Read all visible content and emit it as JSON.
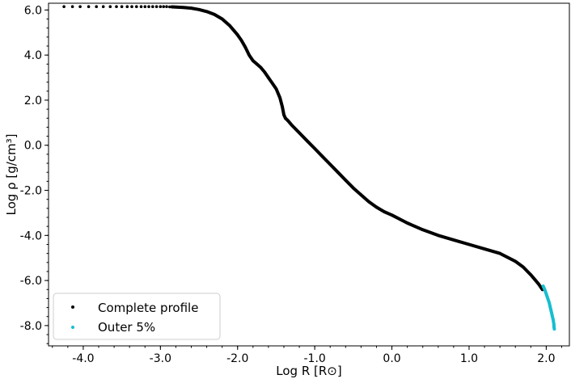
{
  "chart_data": {
    "type": "scatter",
    "xlabel": "Log R [R⊙]",
    "ylabel": "Log ρ [g/cm³]",
    "xlim": [
      -4.45,
      2.3
    ],
    "ylim": [
      -8.9,
      6.3
    ],
    "xticks": [
      -4.0,
      -3.0,
      -2.0,
      -1.0,
      0.0,
      1.0,
      2.0
    ],
    "yticks": [
      6.0,
      4.0,
      2.0,
      0.0,
      -2.0,
      -4.0,
      -6.0,
      -8.0
    ],
    "xtick_labels": [
      "-4.0",
      "-3.0",
      "-2.0",
      "-1.0",
      "0.0",
      "1.0",
      "2.0"
    ],
    "ytick_labels": [
      "6.0",
      "4.0",
      "2.0",
      "0.0",
      "-2.0",
      "-4.0",
      "-6.0",
      "-8.0"
    ],
    "grid": false,
    "legend_position": "lower-left",
    "series": [
      {
        "name": "Complete profile",
        "color": "#000000",
        "x": [
          -4.25,
          -4.14,
          -4.04,
          -3.93,
          -3.83,
          -3.74,
          -3.65,
          -3.57,
          -3.5,
          -3.43,
          -3.37,
          -3.31,
          -3.25,
          -3.2,
          -3.15,
          -3.1,
          -3.05,
          -3.0,
          -2.96,
          -2.92,
          -2.88,
          -2.85,
          -2.8,
          -2.7,
          -2.6,
          -2.5,
          -2.4,
          -2.3,
          -2.2,
          -2.1,
          -2.0,
          -1.95,
          -1.9,
          -1.85,
          -1.8,
          -1.75,
          -1.7,
          -1.65,
          -1.6,
          -1.55,
          -1.5,
          -1.45,
          -1.42,
          -1.4,
          -1.38,
          -1.35,
          -1.3,
          -1.2,
          -1.1,
          -1.0,
          -0.9,
          -0.8,
          -0.7,
          -0.6,
          -0.5,
          -0.4,
          -0.3,
          -0.2,
          -0.1,
          0.0,
          0.2,
          0.4,
          0.6,
          0.8,
          1.0,
          1.2,
          1.4,
          1.6,
          1.7,
          1.8,
          1.85,
          1.9,
          1.95
        ],
        "y": [
          6.15,
          6.15,
          6.15,
          6.15,
          6.15,
          6.15,
          6.15,
          6.15,
          6.15,
          6.15,
          6.15,
          6.15,
          6.15,
          6.15,
          6.15,
          6.15,
          6.15,
          6.15,
          6.15,
          6.15,
          6.14,
          6.14,
          6.13,
          6.11,
          6.08,
          6.02,
          5.93,
          5.8,
          5.6,
          5.3,
          4.9,
          4.65,
          4.35,
          4.0,
          3.75,
          3.6,
          3.45,
          3.25,
          3.0,
          2.75,
          2.5,
          2.1,
          1.7,
          1.35,
          1.2,
          1.1,
          0.9,
          0.55,
          0.2,
          -0.15,
          -0.5,
          -0.85,
          -1.2,
          -1.55,
          -1.9,
          -2.2,
          -2.5,
          -2.75,
          -2.95,
          -3.1,
          -3.45,
          -3.75,
          -4.0,
          -4.2,
          -4.4,
          -4.6,
          -4.8,
          -5.15,
          -5.4,
          -5.75,
          -5.95,
          -6.15,
          -6.4
        ]
      },
      {
        "name": "Outer 5%",
        "color": "#17becf",
        "x": [
          1.96,
          1.98,
          2.0,
          2.02,
          2.04,
          2.05,
          2.06,
          2.07,
          2.08,
          2.09,
          2.095,
          2.1,
          2.1,
          2.105
        ],
        "y": [
          -6.25,
          -6.4,
          -6.6,
          -6.8,
          -7.0,
          -7.15,
          -7.3,
          -7.45,
          -7.6,
          -7.75,
          -7.85,
          -7.95,
          -8.05,
          -8.15
        ]
      }
    ]
  }
}
